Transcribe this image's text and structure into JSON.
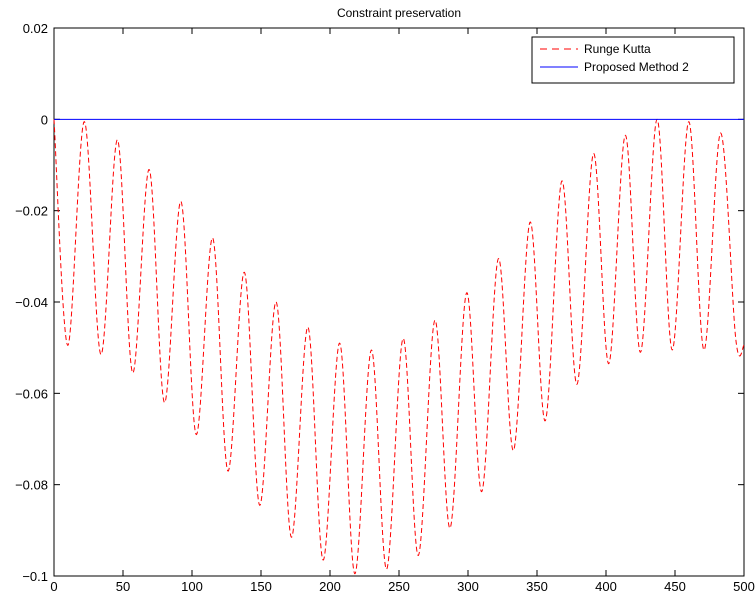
{
  "chart_data": {
    "type": "line",
    "title": "Constraint preservation",
    "xlabel": "",
    "ylabel": "",
    "xlim": [
      0,
      500
    ],
    "ylim": [
      -0.1,
      0.02
    ],
    "x_ticks": [
      0,
      50,
      100,
      150,
      200,
      250,
      300,
      350,
      400,
      450,
      500
    ],
    "x_tick_labels": [
      "0",
      "50",
      "100",
      "150",
      "200",
      "250",
      "300",
      "350",
      "400",
      "450",
      "500"
    ],
    "y_ticks": [
      0.02,
      0,
      -0.02,
      -0.04,
      -0.06,
      -0.08,
      -0.1
    ],
    "y_tick_labels": [
      "0.02",
      "0",
      "−0.02",
      "−0.04",
      "−0.06",
      "−0.08",
      "−0.1"
    ],
    "grid": false,
    "legend_position": "top-right",
    "series": [
      {
        "name": "Runge Kutta",
        "color": "#ff0000",
        "style": "dashed",
        "x": [
          0,
          10,
          22,
          34,
          46,
          57,
          69,
          80,
          92,
          103,
          115,
          126,
          138,
          149,
          161,
          172,
          184,
          195,
          207,
          218,
          230,
          241,
          253,
          264,
          276,
          287,
          299,
          310,
          322,
          333,
          345,
          356,
          368,
          379,
          391,
          402,
          414,
          425,
          437,
          448,
          460,
          471,
          483,
          494,
          500
        ],
        "y": [
          0,
          -0.0495,
          -0.0005,
          -0.0515,
          -0.0045,
          -0.0555,
          -0.011,
          -0.062,
          -0.018,
          -0.069,
          -0.026,
          -0.077,
          -0.0335,
          -0.0845,
          -0.04,
          -0.0915,
          -0.0455,
          -0.0965,
          -0.049,
          -0.0995,
          -0.0505,
          -0.0985,
          -0.048,
          -0.0955,
          -0.044,
          -0.0895,
          -0.038,
          -0.0815,
          -0.0305,
          -0.0725,
          -0.0225,
          -0.066,
          -0.0135,
          -0.058,
          -0.0075,
          -0.0535,
          -0.0035,
          -0.051,
          0,
          -0.0505,
          -0.0005,
          -0.0505,
          -0.003,
          -0.048,
          -0.0495
        ]
      },
      {
        "name": "Proposed Method 2",
        "color": "#0000ff",
        "style": "solid",
        "x": [
          0,
          500
        ],
        "y": [
          0,
          0
        ]
      }
    ]
  }
}
